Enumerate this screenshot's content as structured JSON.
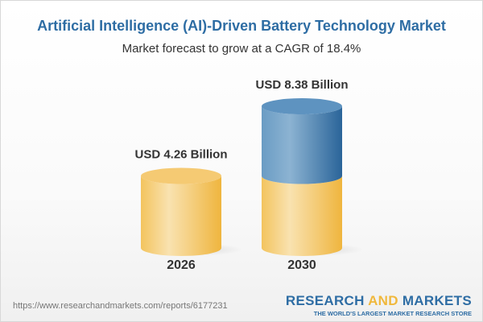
{
  "title": "Artificial Intelligence (AI)-Driven Battery Technology Market",
  "subtitle": "Market forecast to grow at a CAGR of 18.4%",
  "chart_data": {
    "type": "bar",
    "style": "3d-cylinder",
    "categories": [
      "2026",
      "2030"
    ],
    "values": [
      4.26,
      8.38
    ],
    "data_labels": [
      "USD 4.26 Billion",
      "USD 8.38 Billion"
    ],
    "unit": "USD Billion",
    "colors": {
      "base": "#f2c060",
      "growth": "#3f7cb0"
    },
    "grid": false
  },
  "footer": {
    "url": "https://www.researchandmarkets.com/reports/6177231",
    "logo_part1": "RESEARCH ",
    "logo_part2": "AND",
    "logo_part3": " MARKETS",
    "tagline": "THE WORLD'S LARGEST MARKET RESEARCH STORE"
  }
}
